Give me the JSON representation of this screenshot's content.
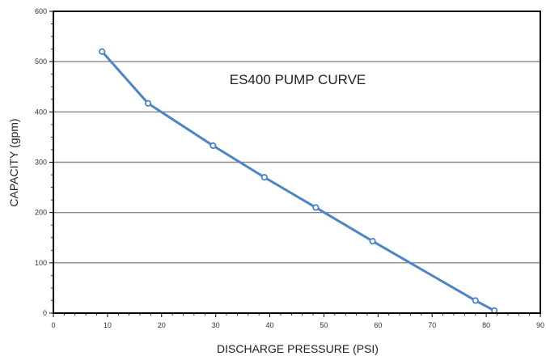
{
  "chart_data": {
    "type": "line",
    "title": "ES400 PUMP CURVE",
    "xlabel": "DISCHARGE PRESSURE (PSI)",
    "ylabel": "CAPACITY (gpm)",
    "xlim": [
      0,
      90
    ],
    "ylim": [
      0,
      600
    ],
    "xticks": [
      "0",
      "10",
      "20",
      "30",
      "40",
      "50",
      "60",
      "70",
      "80",
      "90"
    ],
    "yticks": [
      "0",
      "100",
      "200",
      "300",
      "400",
      "500",
      "600"
    ],
    "grid": "horizontal",
    "legend": "none",
    "series": [
      {
        "x": [
          9,
          17.5,
          29.5,
          39,
          48.5,
          59,
          78,
          81.5
        ],
        "y": [
          520,
          417,
          333,
          270,
          210,
          143,
          25,
          5
        ]
      }
    ],
    "colors": {
      "line": "#4a86c5",
      "grid": "#888888",
      "axis": "#000000"
    }
  }
}
